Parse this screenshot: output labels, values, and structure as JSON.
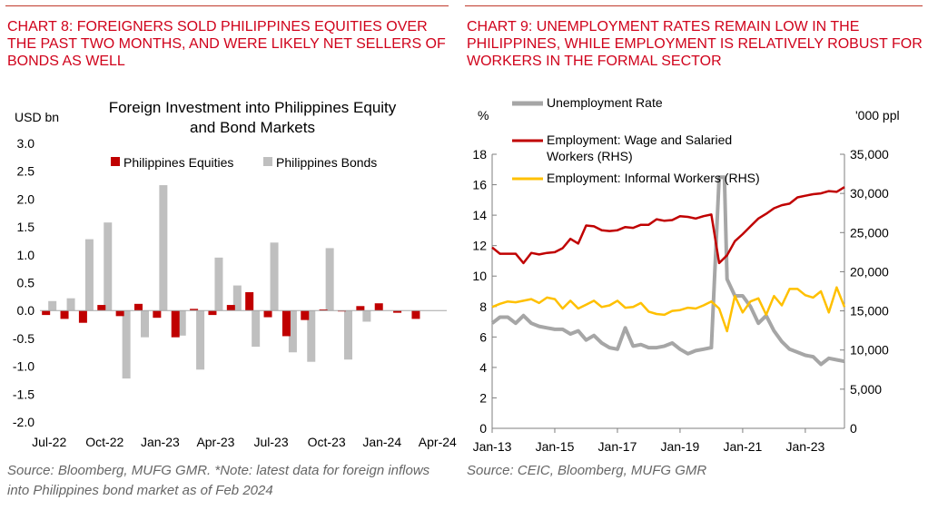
{
  "left": {
    "heading": "CHART 8: FOREIGNERS SOLD PHILIPPINES EQUITIES OVER THE PAST TWO MONTHS, AND WERE LIKELY NET SELLERS OF BONDS AS WELL",
    "source": "Source: Bloomberg, MUFG GMR. *Note: latest data for foreign inflows into Philippines bond market as of Feb 2024"
  },
  "right": {
    "heading": "CHART 9: UNEMPLOYMENT RATES REMAIN LOW IN THE PHILIPPINES, WHILE EMPLOYMENT IS RELATIVELY ROBUST FOR WORKERS IN THE FORMAL SECTOR",
    "source": "Source: CEIC, Bloomberg, MUFG GMR"
  },
  "colors": {
    "heading": "#d0021b",
    "equities": "#c00000",
    "bonds": "#bfbfbf",
    "unemployment": "#a6a6a6",
    "wage": "#c00000",
    "informal": "#ffc000"
  },
  "chart_data": [
    {
      "type": "bar",
      "title": "Foreign Investment into Philippines Equity and Bond Markets",
      "ylabel": "USD bn",
      "xlabel": "",
      "ylim": [
        -2.0,
        3.0
      ],
      "yticks": [
        "3.0",
        "2.5",
        "2.0",
        "1.5",
        "1.0",
        "0.5",
        "0.0",
        "-0.5",
        "-1.0",
        "-1.5",
        "-2.0"
      ],
      "xtick_labels": [
        "Jul-22",
        "Oct-22",
        "Jan-23",
        "Apr-23",
        "Jul-23",
        "Oct-23",
        "Jan-24",
        "Apr-24"
      ],
      "categories": [
        "Jul-22",
        "Aug-22",
        "Sep-22",
        "Oct-22",
        "Nov-22",
        "Dec-22",
        "Jan-23",
        "Feb-23",
        "Mar-23",
        "Apr-23",
        "May-23",
        "Jun-23",
        "Jul-23",
        "Aug-23",
        "Sep-23",
        "Oct-23",
        "Nov-23",
        "Dec-23",
        "Jan-24",
        "Feb-24",
        "Mar-24",
        "Apr-24"
      ],
      "legend_position": "top-center",
      "series": [
        {
          "name": "Philippines Equities",
          "values": [
            -0.08,
            -0.15,
            -0.22,
            0.1,
            -0.1,
            0.12,
            -0.13,
            -0.48,
            0.03,
            -0.08,
            0.1,
            0.33,
            -0.12,
            -0.46,
            -0.17,
            0.02,
            0.0,
            0.08,
            0.13,
            -0.04,
            -0.15,
            null
          ]
        },
        {
          "name": "Philippines Bonds",
          "values": [
            0.17,
            0.22,
            1.28,
            1.58,
            -1.22,
            -0.48,
            2.25,
            -0.45,
            -1.06,
            0.95,
            0.45,
            -0.65,
            1.22,
            -0.75,
            -0.92,
            1.12,
            -0.88,
            -0.2,
            null,
            null,
            null,
            null
          ]
        }
      ]
    },
    {
      "type": "line",
      "ylabel": "%",
      "y2label": "'000 ppl",
      "ylim": [
        0,
        18
      ],
      "y2lim": [
        0,
        35000
      ],
      "yticks": [
        "18",
        "16",
        "14",
        "12",
        "10",
        "8",
        "6",
        "4",
        "2",
        "0"
      ],
      "y2ticks": [
        "35,000",
        "30,000",
        "25,000",
        "20,000",
        "15,000",
        "10,000",
        "5,000",
        "0"
      ],
      "xtick_labels": [
        "Jan-13",
        "Jan-15",
        "Jan-17",
        "Jan-19",
        "Jan-21",
        "Jan-23"
      ],
      "x_range": [
        "Jan-13",
        "Apr-24"
      ],
      "series": [
        {
          "name": "Unemployment Rate",
          "axis": "left",
          "x": [
            "Jan-13",
            "Apr-13",
            "Jul-13",
            "Oct-13",
            "Jan-14",
            "Apr-14",
            "Jul-14",
            "Oct-14",
            "Jan-15",
            "Apr-15",
            "Jul-15",
            "Oct-15",
            "Jan-16",
            "Apr-16",
            "Jul-16",
            "Oct-16",
            "Jan-17",
            "Apr-17",
            "Jul-17",
            "Oct-17",
            "Jan-18",
            "Apr-18",
            "Jul-18",
            "Oct-18",
            "Jan-19",
            "Apr-19",
            "Jul-19",
            "Oct-19",
            "Jan-20",
            "Apr-20",
            "Jun-20",
            "Jul-20",
            "Oct-20",
            "Jan-21",
            "Apr-21",
            "Jul-21",
            "Oct-21",
            "Jan-22",
            "Apr-22",
            "Jul-22",
            "Oct-22",
            "Jan-23",
            "Apr-23",
            "Jul-23",
            "Oct-23",
            "Jan-24",
            "Apr-24"
          ],
          "values": [
            6.9,
            7.3,
            7.3,
            6.9,
            7.4,
            6.9,
            6.7,
            6.6,
            6.5,
            6.5,
            6.2,
            6.4,
            5.8,
            6.1,
            5.6,
            5.3,
            5.2,
            6.6,
            5.4,
            5.5,
            5.3,
            5.3,
            5.4,
            5.6,
            5.2,
            4.9,
            5.1,
            5.2,
            5.3,
            16.5,
            16.5,
            9.8,
            8.7,
            8.7,
            8.0,
            6.9,
            7.4,
            6.4,
            5.7,
            5.2,
            5.0,
            4.8,
            4.7,
            4.2,
            4.6,
            4.5,
            4.4
          ]
        },
        {
          "name": "Employment: Wage and Salaried Workers (RHS)",
          "axis": "right",
          "x": [
            "Jan-13",
            "Apr-13",
            "Jul-13",
            "Oct-13",
            "Jan-14",
            "Apr-14",
            "Jul-14",
            "Oct-14",
            "Jan-15",
            "Apr-15",
            "Jul-15",
            "Oct-15",
            "Jan-16",
            "Apr-16",
            "Jul-16",
            "Oct-16",
            "Jan-17",
            "Apr-17",
            "Jul-17",
            "Oct-17",
            "Jan-18",
            "Apr-18",
            "Jul-18",
            "Oct-18",
            "Jan-19",
            "Apr-19",
            "Jul-19",
            "Oct-19",
            "Jan-20",
            "Apr-20",
            "Jul-20",
            "Oct-20",
            "Jan-21",
            "Apr-21",
            "Jul-21",
            "Oct-21",
            "Jan-22",
            "Apr-22",
            "Jul-22",
            "Oct-22",
            "Jan-23",
            "Apr-23",
            "Jul-23",
            "Oct-23",
            "Jan-24",
            "Apr-24"
          ],
          "values": [
            23100,
            22300,
            22300,
            22300,
            21100,
            22400,
            22200,
            22400,
            22500,
            23000,
            24200,
            23600,
            25900,
            25800,
            25300,
            25200,
            25300,
            25700,
            25600,
            26000,
            26000,
            26700,
            26500,
            26600,
            27100,
            27000,
            26800,
            27100,
            27300,
            21100,
            22100,
            23900,
            24800,
            25800,
            26800,
            27400,
            28100,
            28500,
            28700,
            29500,
            29700,
            29900,
            30000,
            30300,
            30200,
            30800
          ]
        },
        {
          "name": "Employment: Informal Workers (RHS)",
          "axis": "right",
          "x": [
            "Jan-13",
            "Apr-13",
            "Jul-13",
            "Oct-13",
            "Jan-14",
            "Apr-14",
            "Jul-14",
            "Oct-14",
            "Jan-15",
            "Apr-15",
            "Jul-15",
            "Oct-15",
            "Jan-16",
            "Apr-16",
            "Jul-16",
            "Oct-16",
            "Jan-17",
            "Apr-17",
            "Jul-17",
            "Oct-17",
            "Jan-18",
            "Apr-18",
            "Jul-18",
            "Oct-18",
            "Jan-19",
            "Apr-19",
            "Jul-19",
            "Oct-19",
            "Jan-20",
            "Apr-20",
            "Jul-20",
            "Oct-20",
            "Jan-21",
            "Apr-21",
            "Jul-21",
            "Oct-21",
            "Jan-22",
            "Apr-22",
            "Jul-22",
            "Oct-22",
            "Jan-23",
            "Apr-23",
            "Jul-23",
            "Oct-23",
            "Jan-24",
            "Apr-24"
          ],
          "values": [
            15500,
            15900,
            16200,
            16100,
            16300,
            16500,
            16000,
            16700,
            16500,
            15300,
            16300,
            15300,
            15800,
            16300,
            15500,
            15700,
            16300,
            15400,
            15500,
            16000,
            14900,
            14600,
            14500,
            15000,
            15100,
            15400,
            15300,
            15700,
            16200,
            15300,
            12400,
            16900,
            14800,
            16200,
            16600,
            14500,
            16900,
            15700,
            17800,
            17800,
            17000,
            16700,
            17500,
            14800,
            18000,
            15500
          ]
        }
      ]
    }
  ]
}
